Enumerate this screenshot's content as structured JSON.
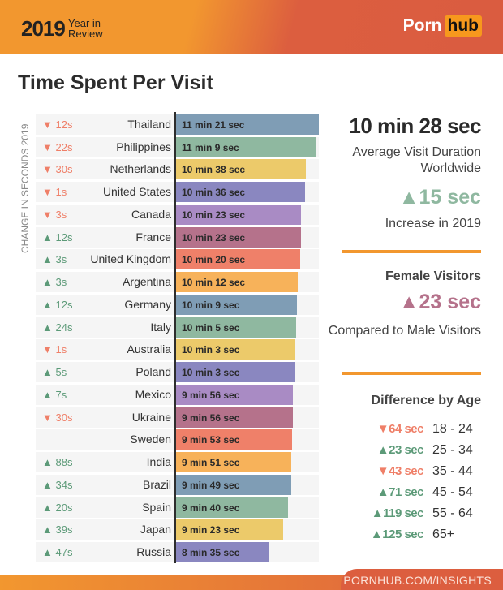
{
  "header": {
    "year": "2019",
    "subtitle": "Year in Review",
    "logo_text": "Porn",
    "logo_highlight": "hub"
  },
  "title": "Time Spent Per Visit",
  "chart_data": {
    "type": "bar",
    "orientation": "horizontal",
    "title": "Time Spent Per Visit",
    "ylabel": "CHANGE IN SECONDS 2019",
    "value_unit": "seconds",
    "xlim": [
      209,
      681
    ],
    "categories": [
      "Thailand",
      "Philippines",
      "Netherlands",
      "United States",
      "Canada",
      "France",
      "United Kingdom",
      "Argentina",
      "Germany",
      "Italy",
      "Australia",
      "Poland",
      "Mexico",
      "Ukraine",
      "Sweden",
      "India",
      "Brazil",
      "Spain",
      "Japan",
      "Russia"
    ],
    "values": [
      681,
      669,
      638,
      636,
      623,
      623,
      620,
      612,
      609,
      605,
      603,
      603,
      596,
      596,
      593,
      591,
      589,
      580,
      563,
      515
    ],
    "labels": [
      "11 min 21 sec",
      "11 min 9 sec",
      "10 min 38 sec",
      "10 min 36 sec",
      "10 min 23 sec",
      "10 min 23 sec",
      "10 min 20 sec",
      "10 min 12 sec",
      "10 min 9 sec",
      "10 min 5 sec",
      "10 min 3 sec",
      "10 min 3 sec",
      "9 min 56 sec",
      "9 min 56 sec",
      "9 min 53 sec",
      "9 min 51 sec",
      "9 min 49 sec",
      "9 min 40 sec",
      "9 min 23 sec",
      "8 min 35 sec"
    ],
    "change": [
      -12,
      -22,
      -30,
      -1,
      -3,
      12,
      3,
      3,
      12,
      24,
      -1,
      5,
      7,
      -30,
      null,
      88,
      34,
      20,
      39,
      47
    ],
    "change_labels": [
      "12s",
      "22s",
      "30s",
      "1s",
      "3s",
      "12s",
      "3s",
      "3s",
      "12s",
      "24s",
      "1s",
      "5s",
      "7s",
      "30s",
      "",
      "88s",
      "34s",
      "20s",
      "39s",
      "47s"
    ],
    "colors": [
      "#7f9db5",
      "#8fb8a0",
      "#ecca6a",
      "#8a87c0",
      "#a98bc4",
      "#b5728b",
      "#ef8069",
      "#f7b25a"
    ],
    "up_color": "#5c9a78",
    "down_color": "#ef7f68"
  },
  "summary": {
    "average": "10 min 28 sec",
    "average_label": "Average Visit Duration Worldwide",
    "increase": "15 sec",
    "increase_label": "Increase in 2019",
    "female_title": "Female Visitors",
    "female_value": "23 sec",
    "female_label": "Compared to Male Visitors",
    "age_title": "Difference by Age",
    "ages": [
      {
        "dir": "down",
        "value": "64 sec",
        "group": "18 - 24"
      },
      {
        "dir": "up",
        "value": "23 sec",
        "group": "25 - 34"
      },
      {
        "dir": "down",
        "value": "43 sec",
        "group": "35 - 44"
      },
      {
        "dir": "up",
        "value": "71 sec",
        "group": "45 - 54"
      },
      {
        "dir": "up",
        "value": "119 sec",
        "group": "55 - 64"
      },
      {
        "dir": "up",
        "value": "125 sec",
        "group": "65+"
      }
    ]
  },
  "footer": {
    "link": "PORNHUB.COM/INSIGHTS"
  }
}
